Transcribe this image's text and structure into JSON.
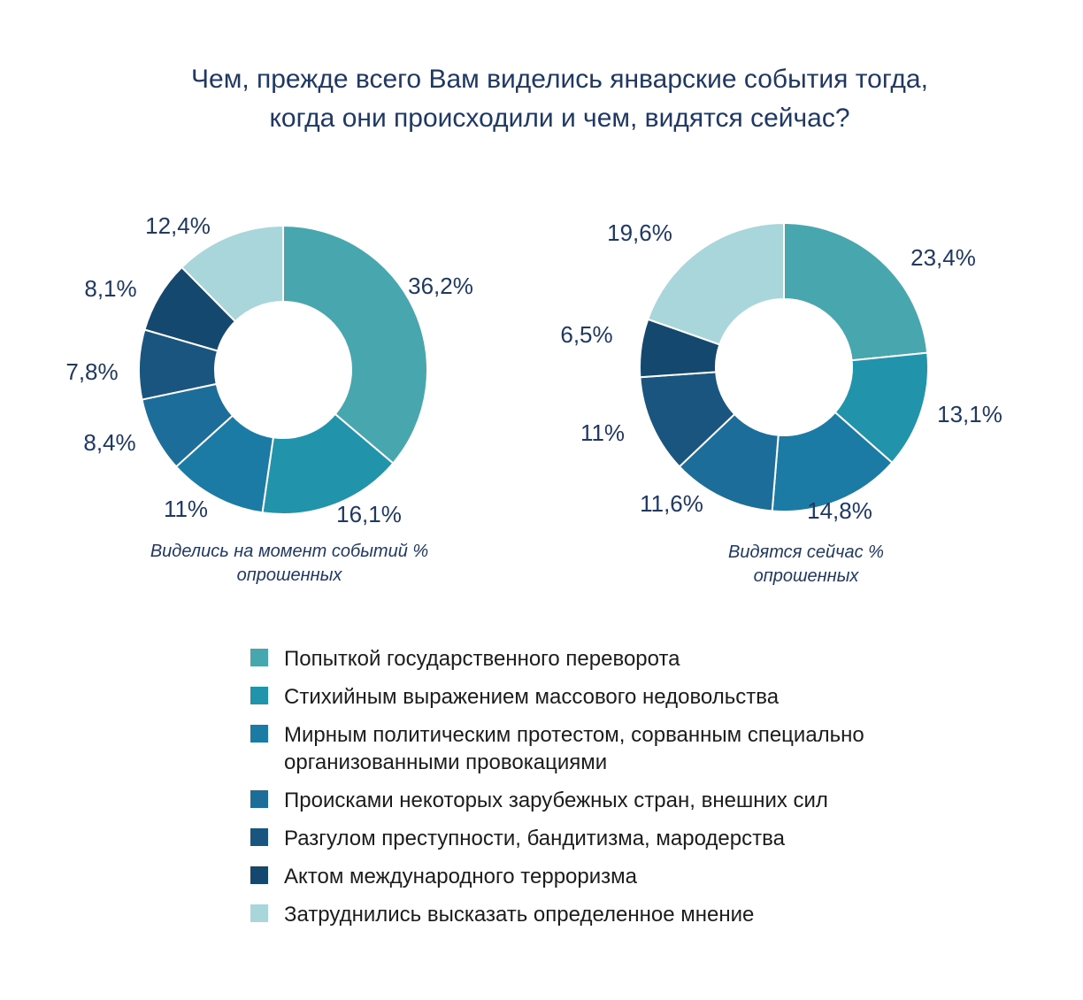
{
  "title": {
    "line1": "Чем, прежде всего Вам виделись январские события тогда,",
    "line2": "когда они происходили и чем, видятся сейчас?"
  },
  "colors": {
    "title_text": "#1F3864",
    "value_label_text": "#1F3864",
    "caption_text": "#1F3864",
    "legend_text": "#1c1c1c",
    "background": "#ffffff"
  },
  "chart_data": {
    "type": "pie",
    "subtype": "donut",
    "legend_position": "bottom",
    "categories": [
      "Попыткой государственного переворота",
      "Стихийным выражением массового недовольства",
      "Мирным политическим протестом, сорванным специально организованными провокациями",
      "Происками некоторых зарубежных стран, внешних сил",
      "Разгулом преступности, бандитизма, мародерства",
      "Актом международного терроризма",
      "Затруднились высказать определенное мнение"
    ],
    "colors": [
      "#48A6AE",
      "#2194AB",
      "#1B7BA4",
      "#1C6D99",
      "#1A5580",
      "#15486E",
      "#A9D6DB"
    ],
    "charts": [
      {
        "caption": [
          "Виделись на момент событий %",
          "опрошенных"
        ],
        "values": [
          36.2,
          16.1,
          11,
          8.4,
          7.8,
          8.1,
          12.4
        ],
        "labels": [
          "36,2%",
          "16,1%",
          "11%",
          "8,4%",
          "7,8%",
          "8,1%",
          "12,4%"
        ]
      },
      {
        "caption": [
          "Видятся сейчас %",
          "опрошенных"
        ],
        "values": [
          23.4,
          13.1,
          14.8,
          11.6,
          11,
          6.5,
          19.6
        ],
        "labels": [
          "23,4%",
          "13,1%",
          "14,8%",
          "11,6%",
          "11%",
          "6,5%",
          "19,6%"
        ]
      }
    ]
  }
}
